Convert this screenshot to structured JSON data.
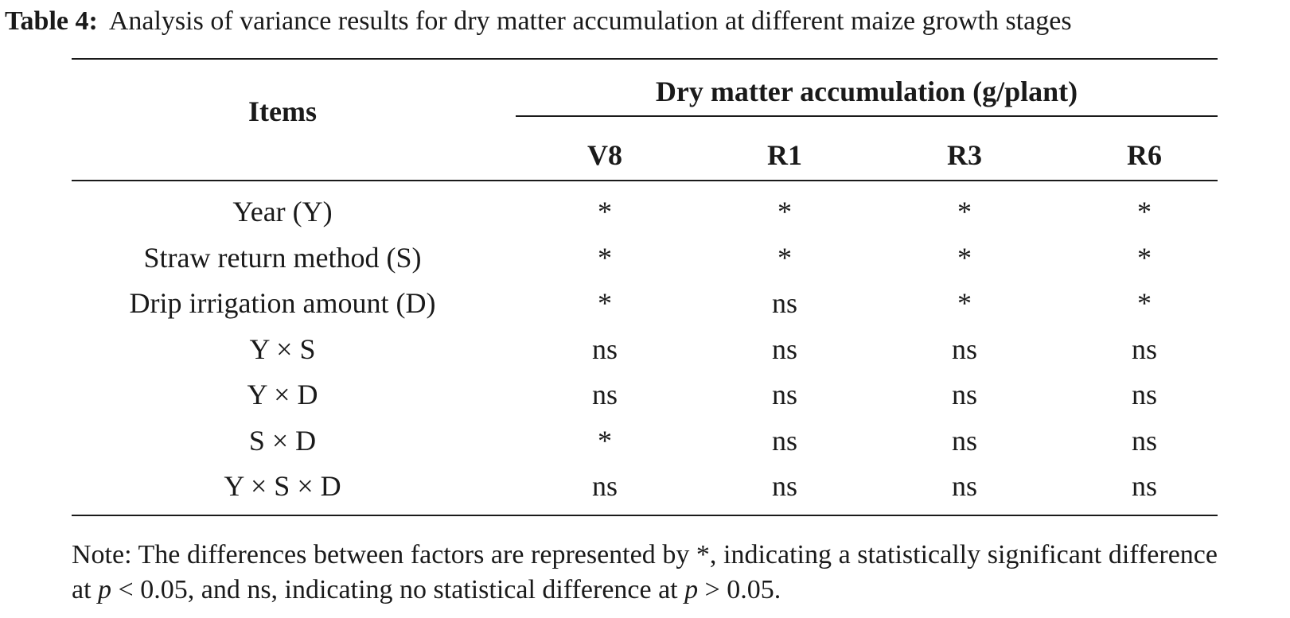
{
  "caption": {
    "label": "Table 4:",
    "text": "Analysis of variance results for dry matter accumulation at different maize growth stages"
  },
  "table": {
    "row_header": "Items",
    "group_header": "Dry matter accumulation (g/plant)",
    "columns": [
      "V8",
      "R1",
      "R3",
      "R6"
    ],
    "rows": [
      {
        "item": "Year (Y)",
        "values": [
          "*",
          "*",
          "*",
          "*"
        ]
      },
      {
        "item": "Straw return method (S)",
        "values": [
          "*",
          "*",
          "*",
          "*"
        ]
      },
      {
        "item": "Drip irrigation amount (D)",
        "values": [
          "*",
          "ns",
          "*",
          "*"
        ]
      },
      {
        "item": "Y × S",
        "values": [
          "ns",
          "ns",
          "ns",
          "ns"
        ]
      },
      {
        "item": "Y × D",
        "values": [
          "ns",
          "ns",
          "ns",
          "ns"
        ]
      },
      {
        "item": "S × D",
        "values": [
          "*",
          "ns",
          "ns",
          "ns"
        ]
      },
      {
        "item": "Y × S × D",
        "values": [
          "ns",
          "ns",
          "ns",
          "ns"
        ]
      }
    ]
  },
  "note": {
    "part1": "Note: The differences between factors are represented by *, indicating a statistically significant difference at ",
    "p1": "p",
    "part2": " < 0.05, and ns, indicating no statistical difference at ",
    "p2": "p",
    "part3": " > 0.05."
  }
}
